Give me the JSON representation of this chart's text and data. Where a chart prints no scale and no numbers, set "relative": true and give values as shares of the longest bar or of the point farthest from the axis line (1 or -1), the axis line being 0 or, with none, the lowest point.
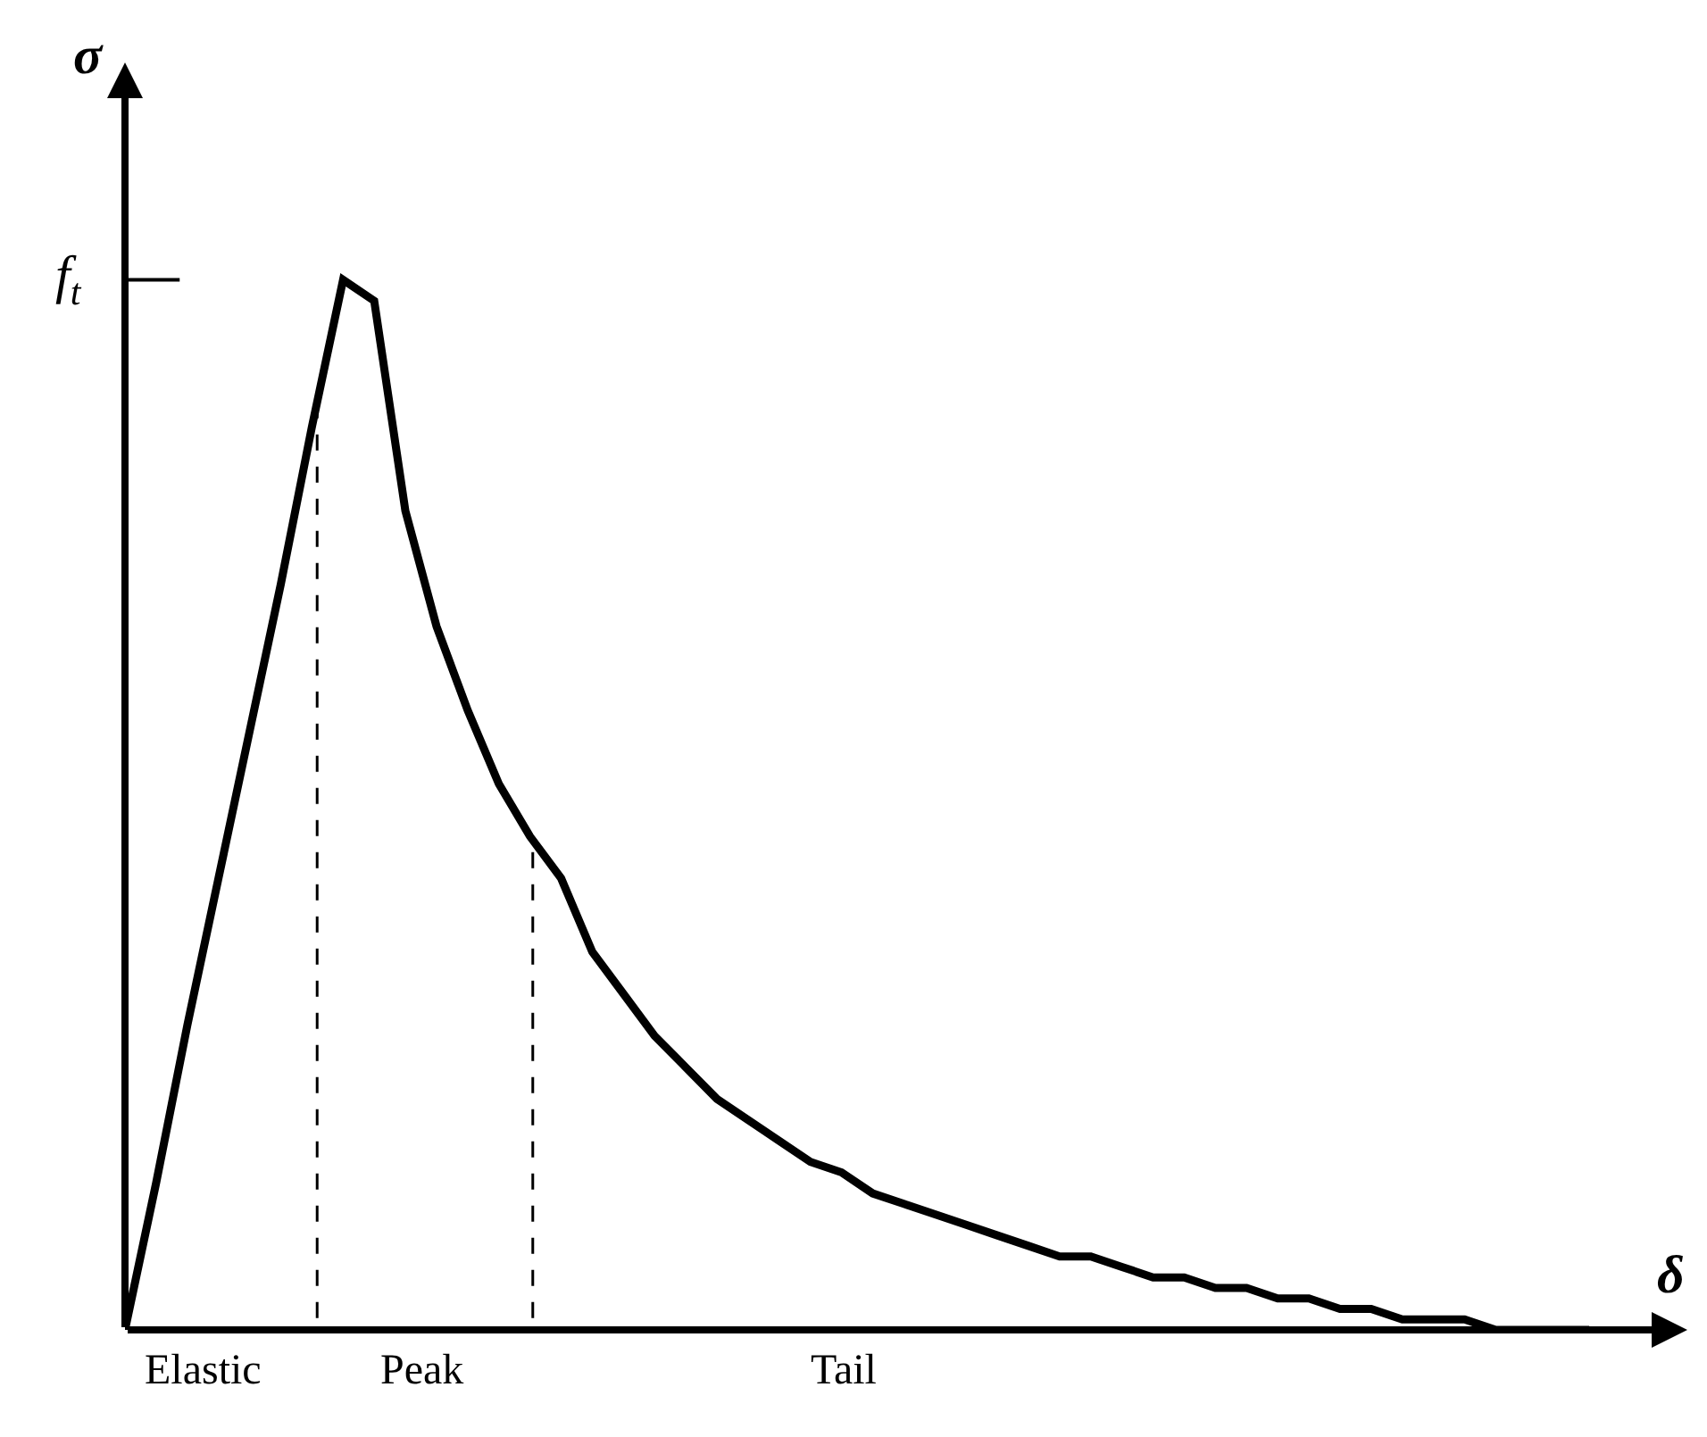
{
  "chart_data": {
    "type": "line",
    "relative": true,
    "xlabel": "δ",
    "ylabel": "σ",
    "marker": "none",
    "line_style": "solid",
    "categories": [
      null,
      null,
      null,
      null,
      null,
      null,
      null,
      null,
      null,
      null,
      null,
      null,
      null,
      null,
      null,
      null,
      null,
      null,
      null,
      null,
      null,
      null,
      null,
      null,
      null,
      null,
      null,
      null,
      null,
      null,
      null,
      null,
      null,
      null,
      null,
      null,
      null,
      null,
      null,
      null,
      null,
      null,
      null,
      null,
      null,
      null,
      null,
      null
    ],
    "series": [
      {
        "color": "#000000",
        "values": [
          0,
          0.14,
          0.29,
          0.43,
          0.57,
          0.71,
          0.86,
          1.0,
          0.98,
          0.78,
          0.67,
          0.59,
          0.52,
          0.47,
          0.43,
          0.36,
          0.32,
          0.28,
          0.25,
          0.22,
          0.2,
          0.18,
          0.16,
          0.15,
          0.13,
          0.12,
          0.11,
          0.1,
          0.09,
          0.08,
          0.07,
          0.07,
          0.06,
          0.05,
          0.05,
          0.04,
          0.04,
          0.03,
          0.03,
          0.02,
          0.02,
          0.01,
          0.01,
          0.01,
          0.0,
          0.0,
          0.0,
          0
        ]
      }
    ],
    "ref_lines": [
      {
        "axis": "y",
        "value": 1.0,
        "label": "f$_{t}$",
        "line_style": "solid"
      }
    ],
    "annotations": [
      "Elastic",
      "Peak",
      "Tail"
    ]
  }
}
